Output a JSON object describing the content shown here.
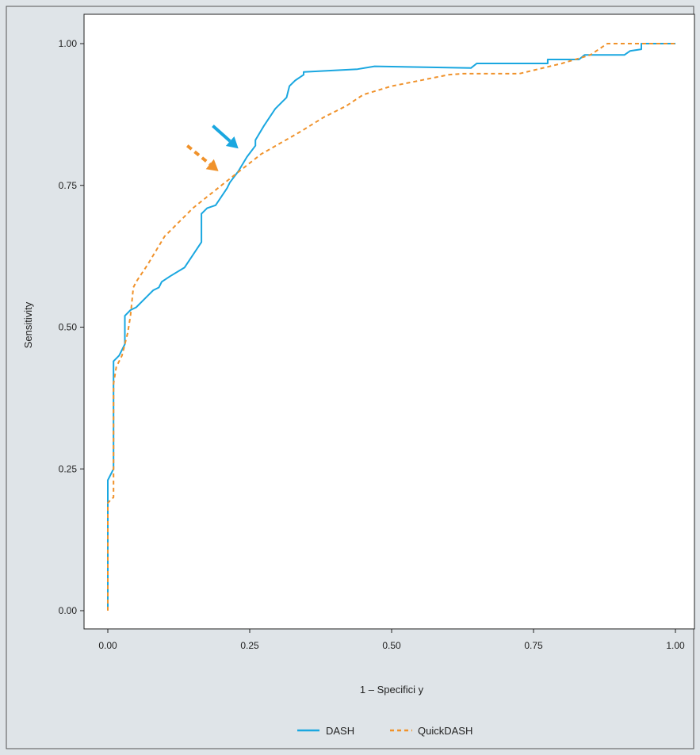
{
  "chart_data": {
    "type": "line",
    "title": "",
    "xlabel": "1 – Specifici y",
    "ylabel": "Sensitivity",
    "xlim": [
      0,
      1
    ],
    "ylim": [
      0,
      1
    ],
    "x_ticks": [
      "0.00",
      "0.25",
      "0.50",
      "0.75",
      "1.00"
    ],
    "y_ticks": [
      "0.00",
      "0.25",
      "0.50",
      "0.75",
      "1.00"
    ],
    "grid": false,
    "legend_position": "bottom",
    "series": [
      {
        "name": "DASH",
        "color": "#1aa7e0",
        "style": "solid",
        "points": [
          [
            0.0,
            0.0
          ],
          [
            0.0,
            0.23
          ],
          [
            0.01,
            0.25
          ],
          [
            0.01,
            0.44
          ],
          [
            0.02,
            0.45
          ],
          [
            0.03,
            0.47
          ],
          [
            0.03,
            0.52
          ],
          [
            0.04,
            0.53
          ],
          [
            0.05,
            0.535
          ],
          [
            0.07,
            0.555
          ],
          [
            0.08,
            0.565
          ],
          [
            0.09,
            0.57
          ],
          [
            0.095,
            0.58
          ],
          [
            0.11,
            0.59
          ],
          [
            0.135,
            0.605
          ],
          [
            0.165,
            0.65
          ],
          [
            0.165,
            0.7
          ],
          [
            0.175,
            0.71
          ],
          [
            0.19,
            0.715
          ],
          [
            0.21,
            0.745
          ],
          [
            0.215,
            0.755
          ],
          [
            0.23,
            0.775
          ],
          [
            0.245,
            0.8
          ],
          [
            0.26,
            0.82
          ],
          [
            0.26,
            0.83
          ],
          [
            0.275,
            0.855
          ],
          [
            0.295,
            0.885
          ],
          [
            0.315,
            0.905
          ],
          [
            0.32,
            0.925
          ],
          [
            0.33,
            0.935
          ],
          [
            0.345,
            0.945
          ],
          [
            0.345,
            0.95
          ],
          [
            0.44,
            0.955
          ],
          [
            0.47,
            0.96
          ],
          [
            0.64,
            0.957
          ],
          [
            0.65,
            0.965
          ],
          [
            0.775,
            0.965
          ],
          [
            0.775,
            0.972
          ],
          [
            0.83,
            0.972
          ],
          [
            0.84,
            0.98
          ],
          [
            0.91,
            0.98
          ],
          [
            0.92,
            0.987
          ],
          [
            0.94,
            0.99
          ],
          [
            0.94,
            1.0
          ],
          [
            1.0,
            1.0
          ]
        ]
      },
      {
        "name": "QuickDASH",
        "color": "#f0922b",
        "style": "dashed",
        "points": [
          [
            0.0,
            0.0
          ],
          [
            0.0,
            0.19
          ],
          [
            0.01,
            0.2
          ],
          [
            0.01,
            0.4
          ],
          [
            0.015,
            0.43
          ],
          [
            0.025,
            0.45
          ],
          [
            0.03,
            0.47
          ],
          [
            0.035,
            0.49
          ],
          [
            0.04,
            0.52
          ],
          [
            0.045,
            0.57
          ],
          [
            0.05,
            0.58
          ],
          [
            0.07,
            0.61
          ],
          [
            0.1,
            0.66
          ],
          [
            0.15,
            0.71
          ],
          [
            0.2,
            0.75
          ],
          [
            0.27,
            0.805
          ],
          [
            0.34,
            0.845
          ],
          [
            0.38,
            0.87
          ],
          [
            0.42,
            0.89
          ],
          [
            0.45,
            0.91
          ],
          [
            0.5,
            0.925
          ],
          [
            0.55,
            0.935
          ],
          [
            0.6,
            0.945
          ],
          [
            0.625,
            0.947
          ],
          [
            0.7,
            0.947
          ],
          [
            0.725,
            0.947
          ],
          [
            0.8,
            0.965
          ],
          [
            0.85,
            0.98
          ],
          [
            0.88,
            1.0
          ],
          [
            1.0,
            1.0
          ]
        ]
      }
    ],
    "annotations": [
      {
        "type": "arrow",
        "color": "#1aa7e0",
        "style": "solid",
        "from": [
          0.185,
          0.855
        ],
        "to": [
          0.23,
          0.815
        ]
      },
      {
        "type": "arrow",
        "color": "#f0922b",
        "style": "dashed",
        "from": [
          0.14,
          0.82
        ],
        "to": [
          0.195,
          0.775
        ]
      }
    ]
  }
}
